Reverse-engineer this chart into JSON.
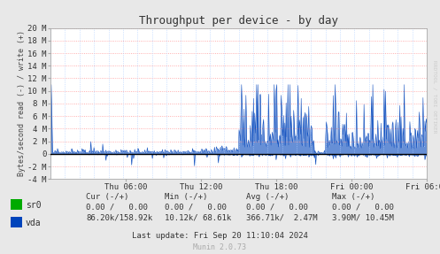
{
  "title": "Throughput per device - by day",
  "ylabel": "Bytes/second read (-) / write (+)",
  "xlabel_ticks": [
    "Thu 06:00",
    "Thu 12:00",
    "Thu 18:00",
    "Fri 00:00",
    "Fri 06:00"
  ],
  "ylim": [
    -4000000,
    20000000
  ],
  "yticks": [
    -4000000,
    -2000000,
    0,
    2000000,
    4000000,
    6000000,
    8000000,
    10000000,
    12000000,
    14000000,
    16000000,
    18000000,
    20000000
  ],
  "ytick_labels": [
    "-4 M",
    "-2 M",
    "0",
    "2 M",
    "4 M",
    "6 M",
    "8 M",
    "10 M",
    "12 M",
    "14 M",
    "16 M",
    "18 M",
    "20 M"
  ],
  "background_color": "#e8e8e8",
  "plot_bg_color": "#ffffff",
  "grid_color_h": "#ff9999",
  "grid_color_v": "#aaccff",
  "line_color_vda": "#0044bb",
  "line_color_sr0": "#00cc00",
  "zero_line_color": "#000000",
  "legend_colors": [
    "#00aa00",
    "#0044bb"
  ],
  "footer_text": "Last update: Fri Sep 20 11:10:04 2024",
  "munin_text": "Munin 2.0.73",
  "rrdtool_text": "RRDTOOL / TOBI OETIKER",
  "seed": 42,
  "n_points": 600
}
